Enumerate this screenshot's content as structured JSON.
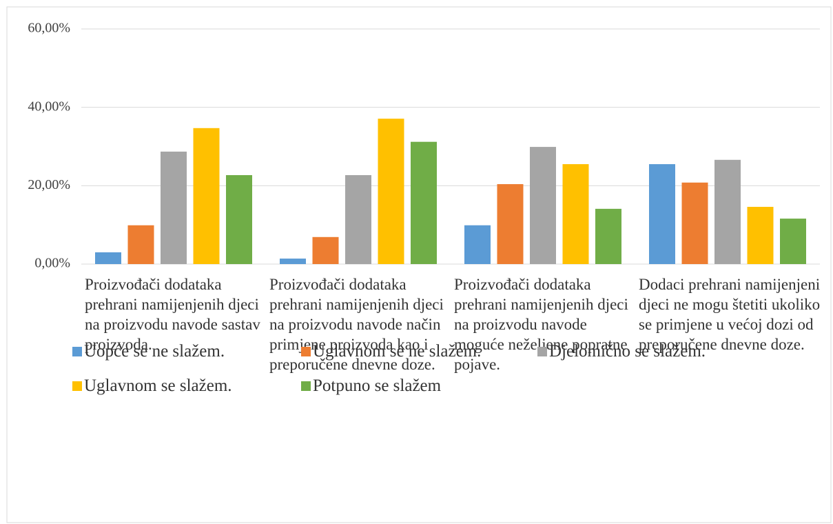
{
  "chart_data": {
    "type": "bar",
    "categories": [
      "Proizvođači dodataka prehrani namijenjenih djeci na proizvodu navode sastav proizvoda.",
      "Proizvođači dodataka prehrani namijenjenih djeci na proizvodu navode način primjene proizvoda kao i preporučene dnevne doze.",
      "Proizvođači dodataka prehrani namijenjenih djeci na proizvodu navode moguće neželjene popratne pojave.",
      "Dodaci prehrani namijenjeni djeci ne mogu štetiti ukoliko se primjene u većoj dozi od preporučene dnevne doze."
    ],
    "series": [
      {
        "name": "Uopće se ne slažem.",
        "color": "#5b9bd5",
        "values": [
          3.0,
          1.4,
          9.9,
          25.5
        ]
      },
      {
        "name": "Uglavnom se ne slažem.",
        "color": "#ed7d31",
        "values": [
          9.9,
          6.9,
          20.4,
          20.8
        ]
      },
      {
        "name": "Djelomično se slažem.",
        "color": "#a5a5a5",
        "values": [
          28.7,
          22.7,
          29.9,
          26.6
        ]
      },
      {
        "name": "Uglavnom se slažem.",
        "color": "#ffc000",
        "values": [
          34.7,
          37.1,
          25.5,
          14.6
        ]
      },
      {
        "name": "Potpuno se slažem",
        "color": "#70ad47",
        "values": [
          22.7,
          31.2,
          14.1,
          11.6
        ]
      }
    ],
    "ylim": [
      0,
      60
    ],
    "yticks": [
      {
        "value": 0,
        "label": "0,00%"
      },
      {
        "value": 20,
        "label": "20,00%"
      },
      {
        "value": 40,
        "label": "40,00%"
      },
      {
        "value": 60,
        "label": "60,00%"
      }
    ],
    "grid": true,
    "legend": "bottom"
  }
}
